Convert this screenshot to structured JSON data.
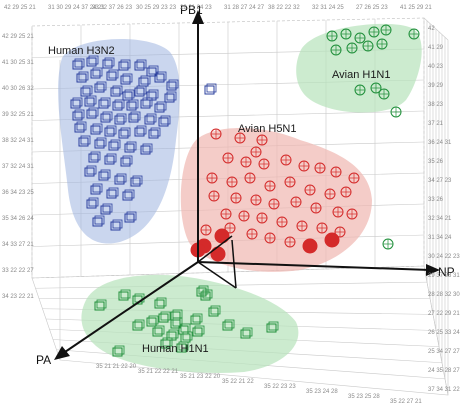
{
  "chart_data": {
    "type": "scatter",
    "axes": {
      "pb1": "PB1",
      "np": "NP",
      "pa": "PA"
    },
    "grid": true,
    "legend": "none",
    "colors": {
      "blue": "#2a3f9e",
      "red": "#d42a2a",
      "green": "#1f8f3a",
      "blue_region": "#9fb4e0",
      "red_region": "#f0b7b0",
      "green_region": "#b7e3bb"
    },
    "series": [
      {
        "name": "Human H3N2",
        "color": "#2a3f9e",
        "marker": "cube",
        "points": [
          [
            78,
            65
          ],
          [
            92,
            62
          ],
          [
            108,
            64
          ],
          [
            124,
            66
          ],
          [
            140,
            66
          ],
          [
            152,
            72
          ],
          [
            82,
            78
          ],
          [
            96,
            74
          ],
          [
            112,
            76
          ],
          [
            126,
            80
          ],
          [
            144,
            82
          ],
          [
            160,
            78
          ],
          [
            172,
            86
          ],
          [
            86,
            92
          ],
          [
            100,
            88
          ],
          [
            116,
            92
          ],
          [
            128,
            96
          ],
          [
            140,
            92
          ],
          [
            152,
            96
          ],
          [
            170,
            98
          ],
          [
            76,
            104
          ],
          [
            90,
            102
          ],
          [
            104,
            104
          ],
          [
            118,
            106
          ],
          [
            132,
            106
          ],
          [
            146,
            104
          ],
          [
            160,
            108
          ],
          [
            78,
            116
          ],
          [
            92,
            114
          ],
          [
            106,
            118
          ],
          [
            120,
            120
          ],
          [
            134,
            118
          ],
          [
            150,
            120
          ],
          [
            164,
            122
          ],
          [
            80,
            128
          ],
          [
            96,
            130
          ],
          [
            110,
            132
          ],
          [
            124,
            134
          ],
          [
            140,
            132
          ],
          [
            154,
            134
          ],
          [
            84,
            142
          ],
          [
            100,
            144
          ],
          [
            114,
            146
          ],
          [
            130,
            148
          ],
          [
            146,
            150
          ],
          [
            94,
            158
          ],
          [
            110,
            160
          ],
          [
            126,
            162
          ],
          [
            90,
            172
          ],
          [
            104,
            176
          ],
          [
            120,
            180
          ],
          [
            136,
            182
          ],
          [
            96,
            190
          ],
          [
            112,
            194
          ],
          [
            128,
            196
          ],
          [
            92,
            204
          ],
          [
            106,
            210
          ],
          [
            98,
            222
          ],
          [
            116,
            226
          ],
          [
            130,
            218
          ],
          [
            210,
            90
          ]
        ]
      },
      {
        "name": "Avian H1N1",
        "color": "#1f8f3a",
        "marker": "sphere",
        "points": [
          [
            332,
            36
          ],
          [
            346,
            34
          ],
          [
            360,
            38
          ],
          [
            374,
            32
          ],
          [
            386,
            30
          ],
          [
            414,
            34
          ],
          [
            336,
            50
          ],
          [
            352,
            48
          ],
          [
            368,
            46
          ],
          [
            382,
            44
          ],
          [
            360,
            90
          ],
          [
            376,
            88
          ],
          [
            384,
            94
          ],
          [
            396,
            112
          ],
          [
            388,
            244
          ]
        ]
      },
      {
        "name": "Avian H5N1",
        "color": "#d42a2a",
        "marker": "sphere",
        "points": [
          [
            216,
            134
          ],
          [
            240,
            138
          ],
          [
            262,
            140
          ],
          [
            256,
            152
          ],
          [
            228,
            158
          ],
          [
            246,
            162
          ],
          [
            264,
            164
          ],
          [
            286,
            160
          ],
          [
            304,
            166
          ],
          [
            320,
            168
          ],
          [
            336,
            172
          ],
          [
            354,
            178
          ],
          [
            212,
            178
          ],
          [
            232,
            182
          ],
          [
            250,
            178
          ],
          [
            270,
            186
          ],
          [
            290,
            182
          ],
          [
            310,
            190
          ],
          [
            330,
            194
          ],
          [
            346,
            192
          ],
          [
            214,
            196
          ],
          [
            236,
            198
          ],
          [
            256,
            200
          ],
          [
            274,
            204
          ],
          [
            296,
            202
          ],
          [
            316,
            208
          ],
          [
            338,
            212
          ],
          [
            352,
            214
          ],
          [
            226,
            214
          ],
          [
            244,
            216
          ],
          [
            262,
            218
          ],
          [
            282,
            222
          ],
          [
            302,
            226
          ],
          [
            322,
            228
          ],
          [
            340,
            232
          ],
          [
            206,
            230
          ],
          [
            230,
            228
          ],
          [
            252,
            234
          ],
          [
            270,
            238
          ],
          [
            290,
            242
          ],
          [
            310,
            246
          ],
          [
            332,
            240
          ],
          [
            204,
            246
          ],
          [
            198,
            250
          ],
          [
            222,
            236
          ],
          [
            218,
            254
          ]
        ]
      },
      {
        "name": "Human H1N1",
        "color": "#1f8f3a",
        "marker": "cube",
        "points": [
          [
            100,
            306
          ],
          [
            124,
            296
          ],
          [
            138,
            300
          ],
          [
            160,
            304
          ],
          [
            176,
            316
          ],
          [
            196,
            320
          ],
          [
            214,
            312
          ],
          [
            228,
            326
          ],
          [
            246,
            334
          ],
          [
            272,
            328
          ],
          [
            138,
            326
          ],
          [
            152,
            322
          ],
          [
            164,
            318
          ],
          [
            176,
            324
          ],
          [
            184,
            330
          ],
          [
            158,
            332
          ],
          [
            172,
            336
          ],
          [
            186,
            338
          ],
          [
            198,
            332
          ],
          [
            166,
            344
          ],
          [
            182,
            348
          ],
          [
            202,
            292
          ],
          [
            206,
            296
          ],
          [
            118,
            352
          ]
        ]
      }
    ]
  },
  "ticks": {
    "back_top": [
      "42 29 25 21",
      "31 30 29 24 37 24 21",
      "33 32 37 26 23",
      "30 25 29 23 23",
      "22 21 24 23",
      "31 28 27 24 27",
      "38 22 22 32",
      "32 31 24 25",
      "27 26 25 23",
      "41 25 29 21"
    ],
    "left": [
      "42 29 25 21",
      "41 30 25 31",
      "40 30 26 32",
      "39 32 25 21",
      "38 32 24 31",
      "37 32 24 31",
      "36 34 23 25",
      "35 34 26 24",
      "34 33 27 21",
      "33 22 22 27",
      "34 23 22 21"
    ],
    "right": [
      "42",
      "41 29",
      "40 23",
      "39 29",
      "38 23",
      "37 21",
      "36 24 31",
      "35 26",
      "34 27 23",
      "33 26",
      "32 34 21",
      "31 34 24",
      "30 24 22 23",
      "29 37 28 31",
      "28 28 32 30",
      "27 22 29 21",
      "26 25 33 24",
      "25 34 27 27",
      "24 35 28 27",
      "37 34 31 22"
    ],
    "bottom": [
      "35 21 21 22 20",
      "35 21 22 22 21",
      "35 21 23 22 20",
      "35 22 21 22",
      "35 22 23 23",
      "35 23 24 28",
      "35 23 25 28",
      "35 22 27 21"
    ]
  }
}
